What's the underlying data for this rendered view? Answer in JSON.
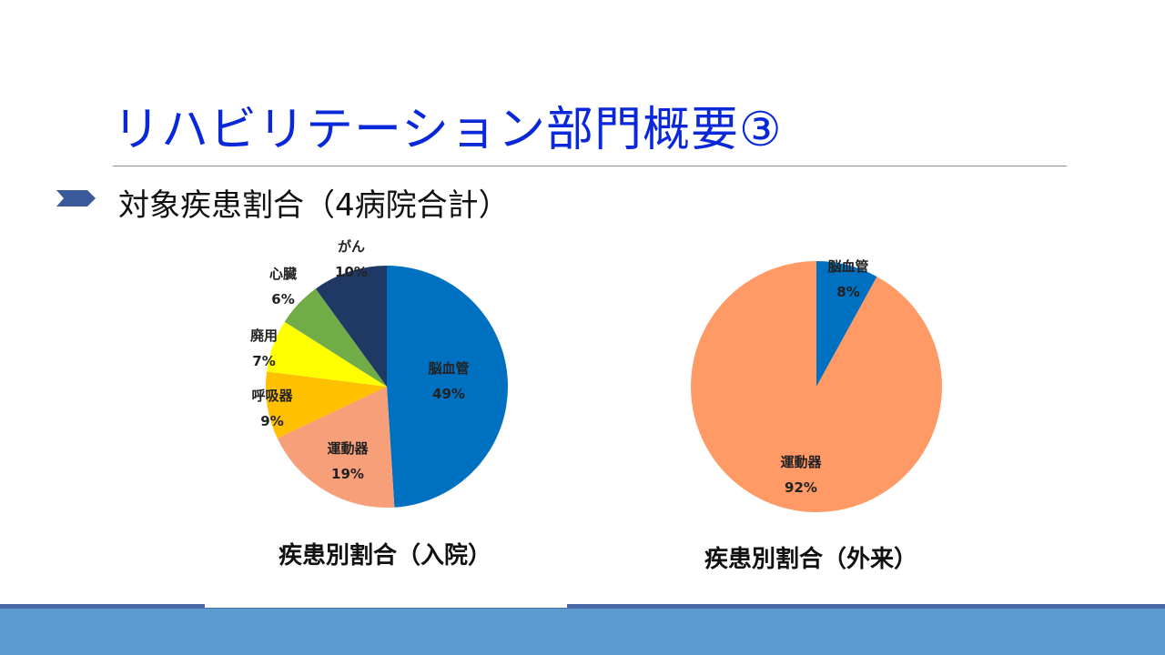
{
  "slide": {
    "title": "リハビリテーション部門概要③",
    "bullet": "対象疾患割合（4病院合計）"
  },
  "colors": {
    "title": "#0a28d8",
    "footer_band": "#5b9bd0",
    "footer_line": "#4a6aa8"
  },
  "chart_data": [
    {
      "type": "pie",
      "title": "疾患別割合（入院）",
      "slices": [
        {
          "name": "脳血管",
          "value": 49,
          "label": "49%",
          "color": "#0070c0"
        },
        {
          "name": "運動器",
          "value": 19,
          "label": "19%",
          "color": "#f79f79"
        },
        {
          "name": "呼吸器",
          "value": 9,
          "label": "9%",
          "color": "#ffc000"
        },
        {
          "name": "廃用",
          "value": 7,
          "label": "7%",
          "color": "#ffff00"
        },
        {
          "name": "心臓",
          "value": 6,
          "label": "6%",
          "color": "#70ad47"
        },
        {
          "name": "がん",
          "value": 10,
          "label": "10%",
          "color": "#203864"
        }
      ],
      "start": "12 o'clock",
      "direction": "clockwise"
    },
    {
      "type": "pie",
      "title": "疾患別割合（外来）",
      "slices": [
        {
          "name": "脳血管",
          "value": 8,
          "label": "8%",
          "color": "#0070c0"
        },
        {
          "name": "運動器",
          "value": 92,
          "label": "92%",
          "color": "#ff9966"
        }
      ],
      "start": "12 o'clock",
      "direction": "clockwise"
    }
  ]
}
